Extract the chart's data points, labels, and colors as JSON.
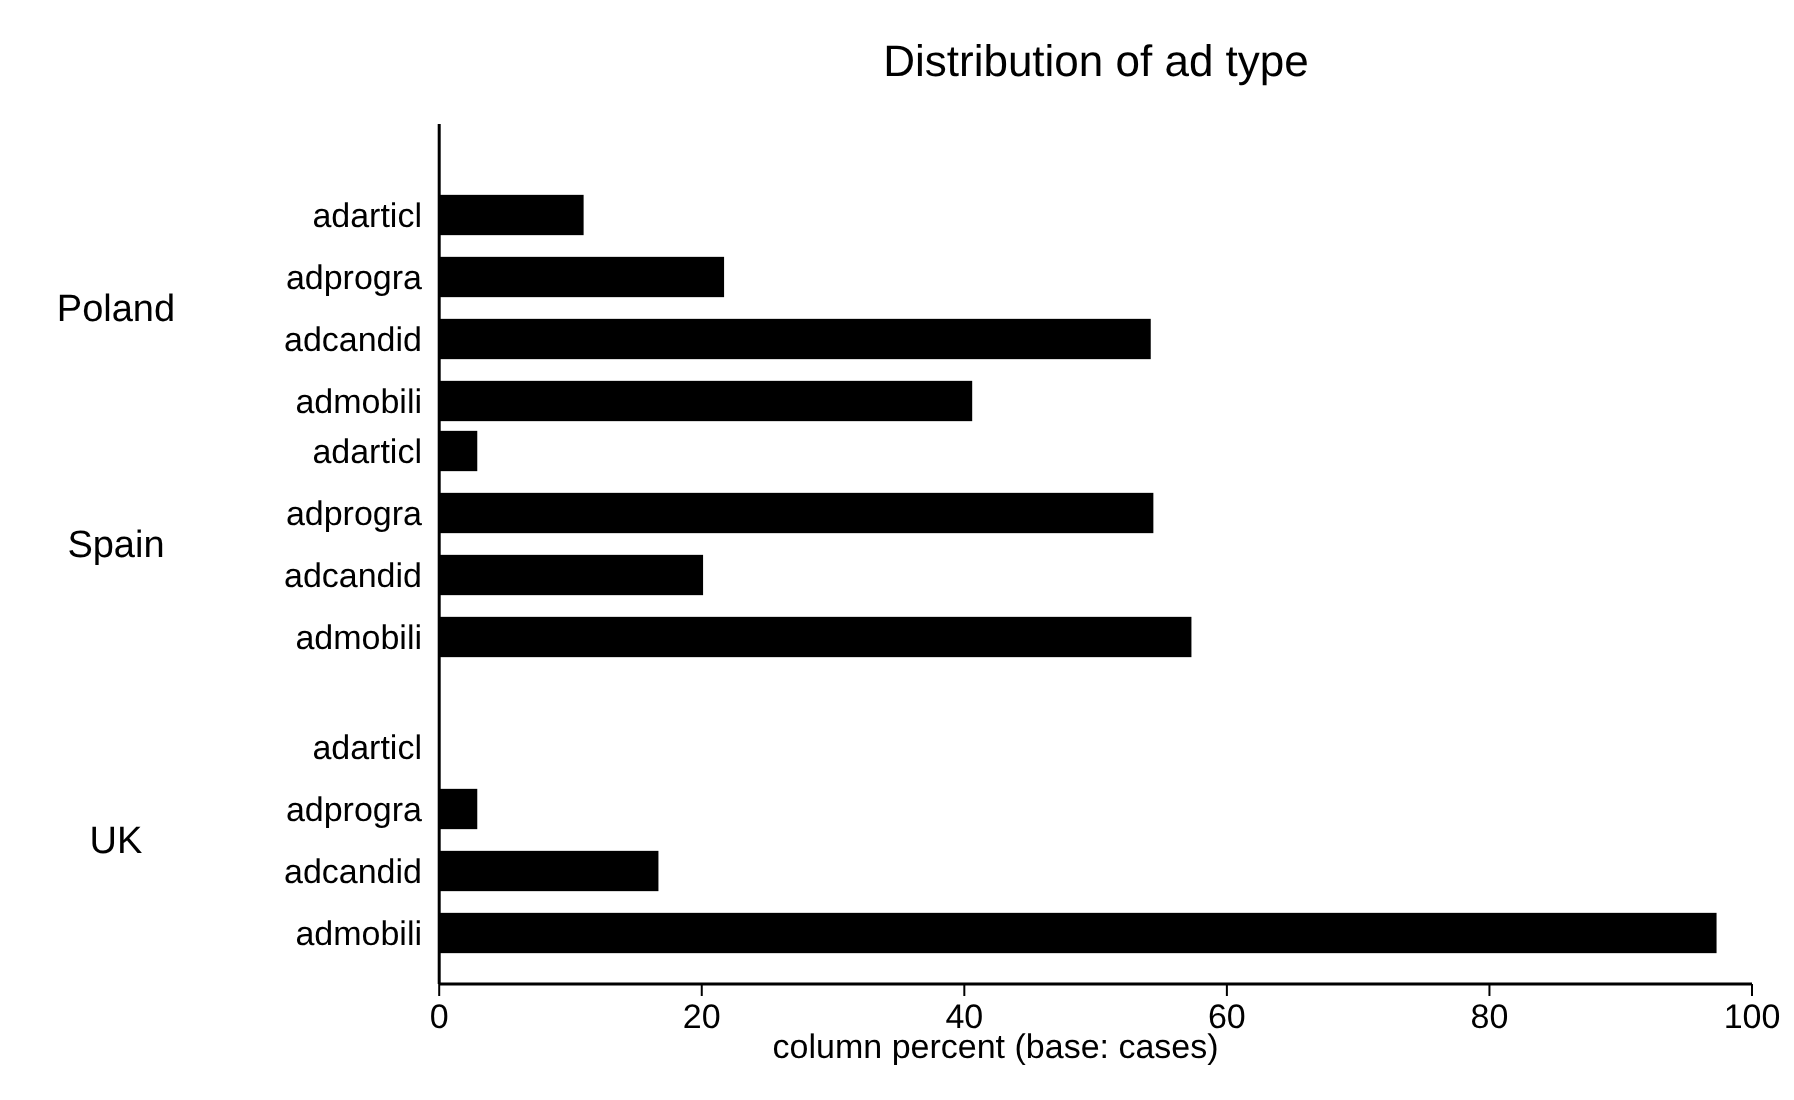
{
  "chart_data": [
    {
      "type": "bar",
      "orientation": "horizontal",
      "title": "Distribution of ad type",
      "ylabel": "Poland",
      "categories": [
        "adarticl",
        "adprogra",
        "adcandid",
        "admobili"
      ],
      "values": [
        11.0,
        21.7,
        54.2,
        40.6
      ],
      "color": "#000000",
      "xlim": [
        0,
        100
      ],
      "tick_labels": "y",
      "grid": false
    },
    {
      "type": "bar",
      "orientation": "horizontal",
      "ylabel": "Spain",
      "categories": [
        "adarticl",
        "adprogra",
        "adcandid",
        "admobili"
      ],
      "values": [
        2.9,
        54.4,
        20.1,
        57.3
      ],
      "color": "#000000",
      "xlim": [
        0,
        100
      ],
      "tick_labels": "y",
      "grid": false
    },
    {
      "type": "bar",
      "orientation": "horizontal",
      "ylabel": "UK",
      "xlabel": "column percent (base: cases)",
      "categories": [
        "adarticl",
        "adprogra",
        "adcandid",
        "admobili"
      ],
      "values": [
        0,
        2.9,
        16.7,
        97.3
      ],
      "color": "#000000",
      "xlim": [
        0,
        100
      ],
      "xticks": [
        0,
        20,
        40,
        60,
        80,
        100
      ],
      "grid": false
    }
  ]
}
